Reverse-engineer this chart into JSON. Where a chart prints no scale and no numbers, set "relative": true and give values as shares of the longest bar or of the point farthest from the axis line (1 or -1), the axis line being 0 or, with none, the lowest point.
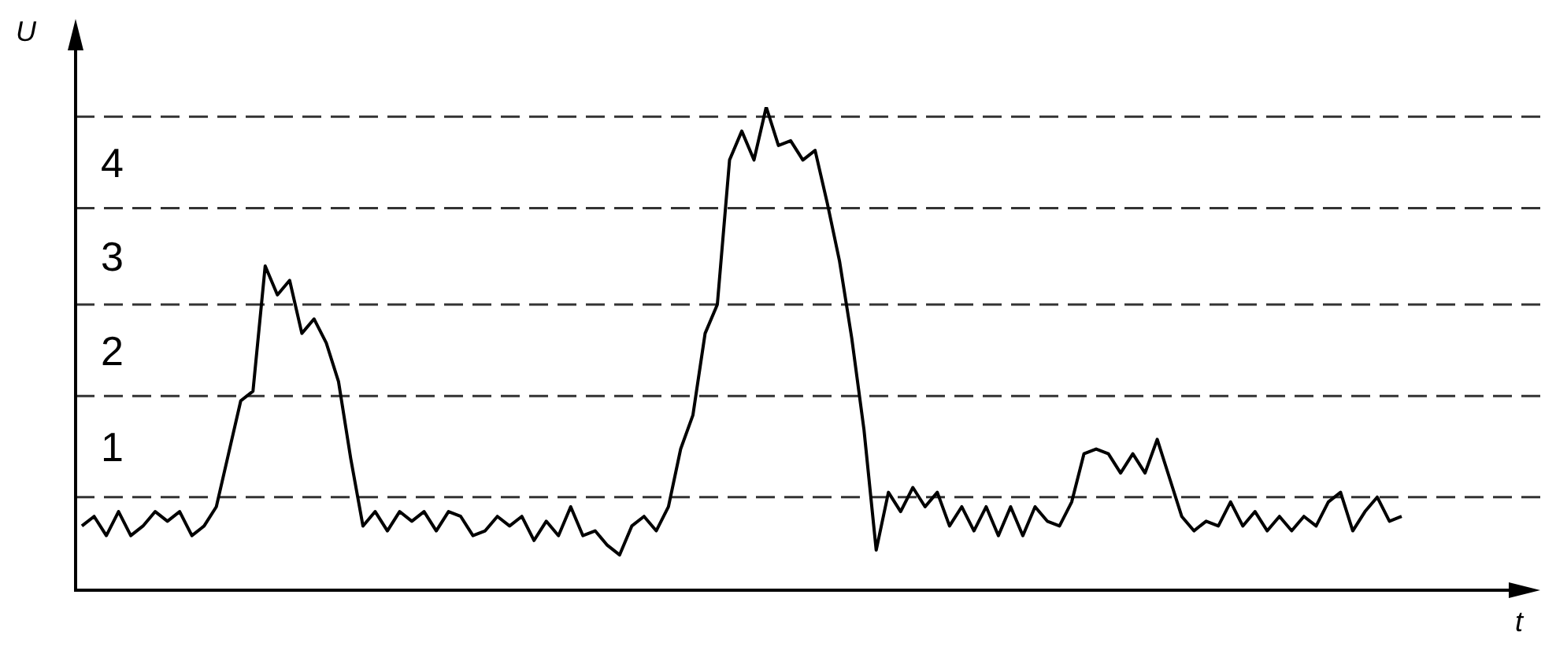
{
  "chart_data": {
    "type": "line",
    "xlabel": "t",
    "ylabel": "U",
    "relative": true,
    "categories": [
      null,
      null,
      null,
      null,
      null,
      null,
      null,
      null,
      null,
      null,
      null,
      null,
      null,
      null,
      null,
      null,
      null,
      null,
      null,
      null,
      null,
      null,
      null,
      null,
      null,
      null,
      null,
      null,
      null,
      null,
      null,
      null,
      null,
      null,
      null,
      null,
      null,
      null,
      null,
      null,
      null,
      null,
      null,
      null,
      null,
      null,
      null,
      null,
      null,
      null,
      null,
      null,
      null,
      null,
      null,
      null,
      null,
      null,
      null,
      null,
      null,
      null,
      null,
      null,
      null,
      null,
      null,
      null,
      null,
      null,
      null,
      null,
      null,
      null,
      null,
      null,
      null,
      null,
      null,
      null,
      null,
      null,
      null,
      null,
      null,
      null,
      null,
      null,
      null,
      null,
      null,
      null,
      null,
      null,
      null,
      null,
      null,
      null,
      null,
      null,
      null,
      null,
      null,
      null,
      null,
      null,
      null,
      null,
      null
    ],
    "series": [
      {
        "color": "#000000",
        "values": [
          0.13,
          0.15,
          0.11,
          0.16,
          0.11,
          0.13,
          0.16,
          0.14,
          0.16,
          0.11,
          0.13,
          0.17,
          0.28,
          0.39,
          0.41,
          0.67,
          0.61,
          0.64,
          0.53,
          0.56,
          0.51,
          0.43,
          0.27,
          0.13,
          0.16,
          0.12,
          0.16,
          0.14,
          0.16,
          0.12,
          0.16,
          0.15,
          0.11,
          0.12,
          0.15,
          0.13,
          0.15,
          0.1,
          0.14,
          0.11,
          0.17,
          0.11,
          0.12,
          0.09,
          0.07,
          0.13,
          0.15,
          0.12,
          0.17,
          0.29,
          0.36,
          0.53,
          0.59,
          0.89,
          0.95,
          0.89,
          1,
          0.92,
          0.93,
          0.89,
          0.91,
          0.8,
          0.68,
          0.52,
          0.33,
          0.08,
          0.2,
          0.16,
          0.21,
          0.17,
          0.2,
          0.13,
          0.17,
          0.12,
          0.17,
          0.11,
          0.17,
          0.11,
          0.17,
          0.14,
          0.13,
          0.18,
          0.28,
          0.29,
          0.28,
          0.24,
          0.28,
          0.24,
          0.31,
          0.23,
          0.15,
          0.12,
          0.14,
          0.13,
          0.18,
          0.13,
          0.16,
          0.12,
          0.15,
          0.12,
          0.15,
          0.13,
          0.18,
          0.2,
          0.12,
          0.16,
          0.19,
          0.14,
          0.15
        ]
      }
    ],
    "ref_lines": [
      {
        "axis": "y",
        "value": 0.19,
        "color": "#333333",
        "line_style": "dashed"
      },
      {
        "axis": "y",
        "value": 0.4,
        "color": "#333333",
        "line_style": "dashed"
      },
      {
        "axis": "y",
        "value": 0.59,
        "color": "#333333",
        "line_style": "dashed"
      },
      {
        "axis": "y",
        "value": 0.79,
        "color": "#333333",
        "line_style": "dashed"
      },
      {
        "axis": "y",
        "value": 0.98,
        "color": "#333333",
        "line_style": "dashed"
      }
    ],
    "annotations": [
      "1",
      "2",
      "3",
      "4"
    ]
  }
}
